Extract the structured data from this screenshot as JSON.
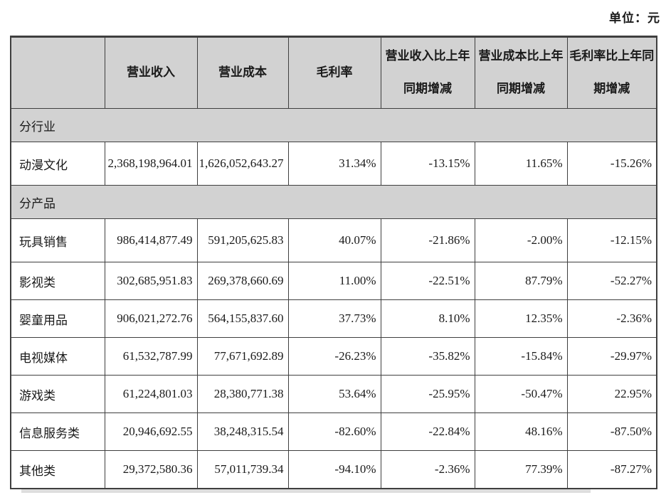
{
  "page": {
    "unit_label": "单位：元"
  },
  "colors": {
    "header_bg": "#d2d2d2",
    "border": "#3f3f3f",
    "text": "#1a1a1a",
    "page_bg": "#ffffff"
  },
  "table": {
    "columns": [
      {
        "id": "category",
        "lines": []
      },
      {
        "id": "revenue",
        "lines": [
          "营业收入"
        ]
      },
      {
        "id": "cost",
        "lines": [
          "营业成本"
        ]
      },
      {
        "id": "gross_margin",
        "lines": [
          "毛利率"
        ]
      },
      {
        "id": "revenue_yoy",
        "lines": [
          "营业收入比上年",
          "同期增减"
        ]
      },
      {
        "id": "cost_yoy",
        "lines": [
          "营业成本比上年",
          "同期增减"
        ]
      },
      {
        "id": "margin_yoy",
        "lines": [
          "毛利率比上年同",
          "期增减"
        ]
      }
    ],
    "sections": [
      {
        "label": "分行业",
        "rows": [
          {
            "label": "动漫文化",
            "values": [
              "2,368,198,964.01",
              "1,626,052,643.27",
              "31.34%",
              "-13.15%",
              "11.65%",
              "-15.26%"
            ]
          }
        ]
      },
      {
        "label": "分产品",
        "rows": [
          {
            "label": "玩具销售",
            "values": [
              "986,414,877.49",
              "591,205,625.83",
              "40.07%",
              "-21.86%",
              "-2.00%",
              "-12.15%"
            ]
          },
          {
            "label": "影视类",
            "values": [
              "302,685,951.83",
              "269,378,660.69",
              "11.00%",
              "-22.51%",
              "87.79%",
              "-52.27%"
            ]
          },
          {
            "label": "婴童用品",
            "values": [
              "906,021,272.76",
              "564,155,837.60",
              "37.73%",
              "8.10%",
              "12.35%",
              "-2.36%"
            ]
          },
          {
            "label": "电视媒体",
            "values": [
              "61,532,787.99",
              "77,671,692.89",
              "-26.23%",
              "-35.82%",
              "-15.84%",
              "-29.97%"
            ]
          },
          {
            "label": "游戏类",
            "values": [
              "61,224,801.03",
              "28,380,771.38",
              "53.64%",
              "-25.95%",
              "-50.47%",
              "22.95%"
            ]
          },
          {
            "label": "信息服务类",
            "values": [
              "20,946,692.55",
              "38,248,315.54",
              "-82.60%",
              "-22.84%",
              "48.16%",
              "-87.50%"
            ]
          },
          {
            "label": "其他类",
            "values": [
              "29,372,580.36",
              "57,011,739.34",
              "-94.10%",
              "-2.36%",
              "77.39%",
              "-87.27%"
            ]
          }
        ]
      }
    ]
  }
}
